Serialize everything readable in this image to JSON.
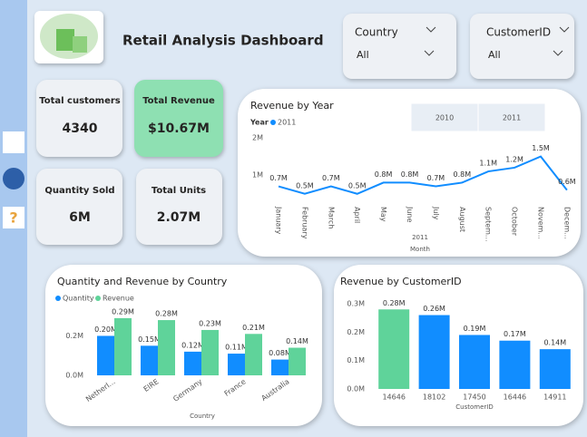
{
  "header": {
    "title": "Retail Analysis Dashboard"
  },
  "slicers": [
    {
      "label": "Country",
      "value": "All"
    },
    {
      "label": "CustomerID",
      "value": "All"
    }
  ],
  "kpis": [
    {
      "label": "Total customers",
      "value": "4340"
    },
    {
      "label": "Total Revenue",
      "value": "$10.67M"
    },
    {
      "label": "Quantity Sold",
      "value": "6M"
    },
    {
      "label": "Total Units",
      "value": "2.07M"
    }
  ],
  "chart_data": [
    {
      "type": "line",
      "title": "Revenue by Year",
      "legend_title": "Year",
      "buttons": [
        "2010",
        "2011"
      ],
      "categories": [
        "January",
        "February",
        "March",
        "April",
        "May",
        "June",
        "July",
        "August",
        "Septem...",
        "October",
        "Novem...",
        "Decem..."
      ],
      "series": [
        {
          "name": "2011",
          "color": "#118dff",
          "values": [
            0.7,
            0.5,
            0.7,
            0.5,
            0.8,
            0.8,
            0.7,
            0.8,
            1.1,
            1.2,
            1.5,
            0.6
          ],
          "value_labels": [
            "0.7M",
            "0.5M",
            "0.7M",
            "0.5M",
            "0.8M",
            "0.8M",
            "0.7M",
            "0.8M",
            "1.1M",
            "1.2M",
            "1.5M",
            "0.6M"
          ]
        }
      ],
      "x_group_label": "2011",
      "xlabel": "Month",
      "ylim": [
        0.3,
        2
      ],
      "yticks": [
        {
          "value": 1,
          "label": "1M"
        },
        {
          "value": 2,
          "label": "2M"
        }
      ],
      "grid": false
    },
    {
      "type": "bar",
      "title": "Quantity and Revenue by Country",
      "categories": [
        "Netherl...",
        "EIRE",
        "Germany",
        "France",
        "Australia"
      ],
      "series": [
        {
          "name": "Quantity",
          "color": "#118dff",
          "values": [
            0.2,
            0.15,
            0.12,
            0.11,
            0.08
          ],
          "value_labels": [
            "0.20M",
            "0.15M",
            "0.12M",
            "0.11M",
            "0.08M"
          ]
        },
        {
          "name": "Revenue",
          "color": "#5fd39a",
          "values": [
            0.29,
            0.28,
            0.23,
            0.21,
            0.14
          ],
          "value_labels": [
            "0.29M",
            "0.28M",
            "0.23M",
            "0.21M",
            "0.14M"
          ]
        }
      ],
      "xlabel": "Country",
      "ylim": [
        0,
        0.34
      ],
      "yticks": [
        {
          "value": 0,
          "label": "0.0M"
        },
        {
          "value": 0.2,
          "label": "0.2M"
        }
      ],
      "grid": false
    },
    {
      "type": "bar",
      "title": "Revenue by CustomerID",
      "categories": [
        "14646",
        "18102",
        "17450",
        "16446",
        "14911"
      ],
      "values": [
        0.28,
        0.26,
        0.19,
        0.17,
        0.14
      ],
      "value_labels": [
        "0.28M",
        "0.26M",
        "0.19M",
        "0.17M",
        "0.14M"
      ],
      "colors": [
        "#5fd39a",
        "#118dff",
        "#118dff",
        "#118dff",
        "#118dff"
      ],
      "xlabel": "CustomerID",
      "ylim": [
        0,
        0.3
      ],
      "yticks": [
        {
          "value": 0,
          "label": "0.0M"
        },
        {
          "value": 0.1,
          "label": "0.1M"
        },
        {
          "value": 0.2,
          "label": "0.2M"
        },
        {
          "value": 0.3,
          "label": "0.3M"
        }
      ],
      "grid": false
    }
  ]
}
